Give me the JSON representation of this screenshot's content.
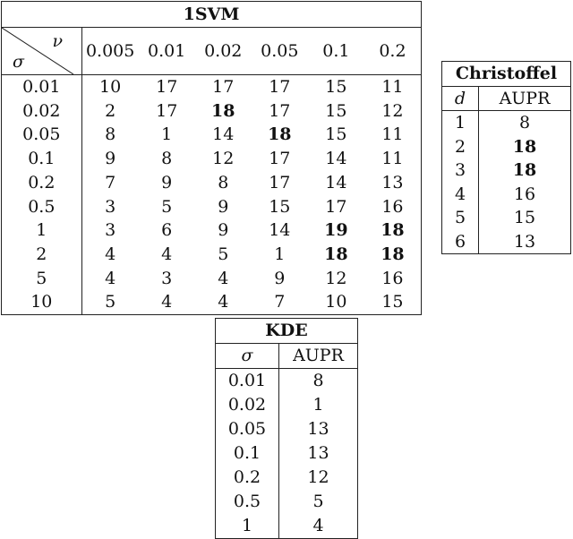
{
  "svm": {
    "title": "1SVM",
    "col_symbol": "ν",
    "row_symbol": "σ",
    "nu_values": [
      "0.005",
      "0.01",
      "0.02",
      "0.05",
      "0.1",
      "0.2"
    ],
    "rows": [
      {
        "sigma": "0.01",
        "cells": [
          {
            "v": "10"
          },
          {
            "v": "17"
          },
          {
            "v": "17"
          },
          {
            "v": "17"
          },
          {
            "v": "15"
          },
          {
            "v": "11"
          }
        ]
      },
      {
        "sigma": "0.02",
        "cells": [
          {
            "v": "2"
          },
          {
            "v": "17"
          },
          {
            "v": "18",
            "b": true
          },
          {
            "v": "17"
          },
          {
            "v": "15"
          },
          {
            "v": "12"
          }
        ]
      },
      {
        "sigma": "0.05",
        "cells": [
          {
            "v": "8"
          },
          {
            "v": "1"
          },
          {
            "v": "14"
          },
          {
            "v": "18",
            "b": true
          },
          {
            "v": "15"
          },
          {
            "v": "11"
          }
        ]
      },
      {
        "sigma": "0.1",
        "cells": [
          {
            "v": "9"
          },
          {
            "v": "8"
          },
          {
            "v": "12"
          },
          {
            "v": "17"
          },
          {
            "v": "14"
          },
          {
            "v": "11"
          }
        ]
      },
      {
        "sigma": "0.2",
        "cells": [
          {
            "v": "7"
          },
          {
            "v": "9"
          },
          {
            "v": "8"
          },
          {
            "v": "17"
          },
          {
            "v": "14"
          },
          {
            "v": "13"
          }
        ]
      },
      {
        "sigma": "0.5",
        "cells": [
          {
            "v": "3"
          },
          {
            "v": "5"
          },
          {
            "v": "9"
          },
          {
            "v": "15"
          },
          {
            "v": "17"
          },
          {
            "v": "16"
          }
        ]
      },
      {
        "sigma": "1",
        "cells": [
          {
            "v": "3"
          },
          {
            "v": "6"
          },
          {
            "v": "9"
          },
          {
            "v": "14"
          },
          {
            "v": "19",
            "b": true
          },
          {
            "v": "18",
            "b": true
          }
        ]
      },
      {
        "sigma": "2",
        "cells": [
          {
            "v": "4"
          },
          {
            "v": "4"
          },
          {
            "v": "5"
          },
          {
            "v": "1"
          },
          {
            "v": "18",
            "b": true
          },
          {
            "v": "18",
            "b": true
          }
        ]
      },
      {
        "sigma": "5",
        "cells": [
          {
            "v": "4"
          },
          {
            "v": "3"
          },
          {
            "v": "4"
          },
          {
            "v": "9"
          },
          {
            "v": "12"
          },
          {
            "v": "16"
          }
        ]
      },
      {
        "sigma": "10",
        "cells": [
          {
            "v": "5"
          },
          {
            "v": "4"
          },
          {
            "v": "4"
          },
          {
            "v": "7"
          },
          {
            "v": "10"
          },
          {
            "v": "15"
          }
        ]
      }
    ]
  },
  "christoffel": {
    "title": "Christoffel",
    "col1": "d",
    "col2": "AUPR",
    "rows": [
      {
        "k": "1",
        "v": "8"
      },
      {
        "k": "2",
        "v": "18",
        "b": true
      },
      {
        "k": "3",
        "v": "18",
        "b": true
      },
      {
        "k": "4",
        "v": "16"
      },
      {
        "k": "5",
        "v": "15"
      },
      {
        "k": "6",
        "v": "13"
      }
    ]
  },
  "kde": {
    "title": "KDE",
    "col1": "σ",
    "col2": "AUPR",
    "rows": [
      {
        "k": "0.01",
        "v": "8"
      },
      {
        "k": "0.02",
        "v": "1"
      },
      {
        "k": "0.05",
        "v": "13"
      },
      {
        "k": "0.1",
        "v": "13"
      },
      {
        "k": "0.2",
        "v": "12"
      },
      {
        "k": "0.5",
        "v": "5"
      },
      {
        "k": "1",
        "v": "4"
      }
    ]
  }
}
